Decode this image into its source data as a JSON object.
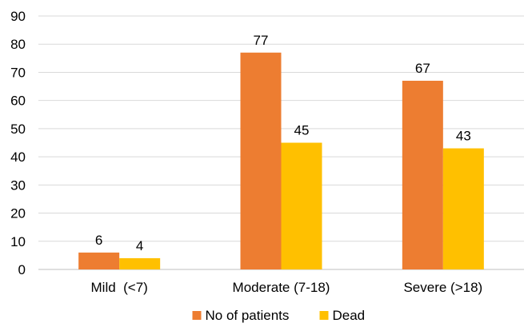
{
  "chart_data": {
    "type": "bar",
    "title": "",
    "xlabel": "",
    "ylabel": "",
    "categories": [
      "Mild  (<7)",
      "Moderate (7-18)",
      "Severe (>18)"
    ],
    "series": [
      {
        "name": "No of patients",
        "values": [
          6,
          77,
          67
        ],
        "color": "#ED7D31"
      },
      {
        "name": "Dead",
        "values": [
          4,
          45,
          43
        ],
        "color": "#FFC000"
      }
    ],
    "ylim": [
      0,
      90
    ],
    "yticks": [
      0,
      10,
      20,
      30,
      40,
      50,
      60,
      70,
      80,
      90
    ],
    "grid": true,
    "grid_color": "#D9D9D9",
    "legend_position": "bottom"
  }
}
